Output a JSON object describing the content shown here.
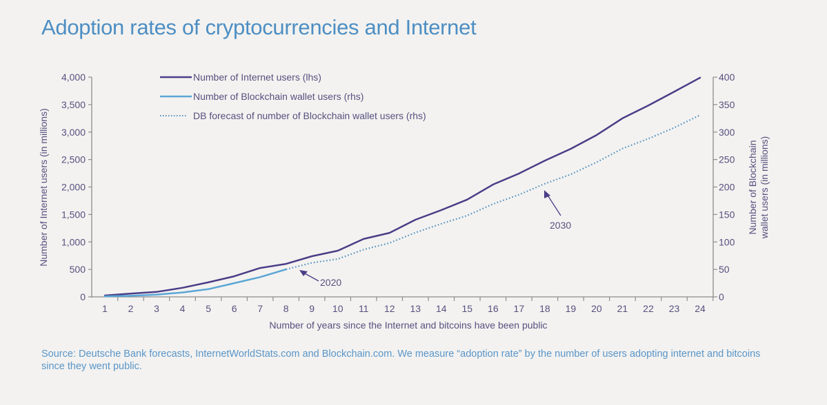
{
  "title": "Adoption rates of cryptocurrencies and Internet",
  "source": "Source: Deutsche Bank forecasts, InternetWorldStats.com and Blockchain.com. We measure “adoption rate” by the number of users adopting internet and bitcoins since they went public.",
  "colors": {
    "internet": "#4b3d87",
    "blockchain": "#5aa6d6",
    "forecast": "#4f8fc0",
    "axis": "#8c8c8c",
    "text": "#57507f",
    "title": "#4d8ec3"
  },
  "chart_data": {
    "type": "line",
    "title": "Adoption rates of cryptocurrencies and Internet",
    "xlabel": "Number of years since the Internet and bitcoins have been public",
    "ylabel_left": "Number of Internet users (in millions)",
    "ylabel_right": [
      "Number of Blockchain",
      "wallet users (in millions)"
    ],
    "x": [
      1,
      2,
      3,
      4,
      5,
      6,
      7,
      8,
      9,
      10,
      11,
      12,
      13,
      14,
      15,
      16,
      17,
      18,
      19,
      20,
      21,
      22,
      23,
      24
    ],
    "xlim": [
      1,
      24
    ],
    "ylim_left": [
      0,
      4000
    ],
    "ylim_right": [
      0,
      400
    ],
    "yticks_left": [
      "0",
      "500",
      "1,000",
      "1,500",
      "2,000",
      "2,500",
      "3,000",
      "3,500",
      "4,000"
    ],
    "yticks_right": [
      "0",
      "50",
      "100",
      "150",
      "200",
      "250",
      "300",
      "350",
      "400"
    ],
    "yticks_left_values": [
      0,
      500,
      1000,
      1500,
      2000,
      2500,
      3000,
      3500,
      4000
    ],
    "yticks_right_values": [
      0,
      50,
      100,
      150,
      200,
      250,
      300,
      350,
      400
    ],
    "legend_position": "top-left",
    "grid": false,
    "series": [
      {
        "name": "Number of Internet users (lhs)",
        "axis": "left",
        "style": "solid",
        "x": [
          1,
          2,
          3,
          4,
          5,
          6,
          7,
          8,
          9,
          10,
          11,
          12,
          13,
          14,
          15,
          16,
          17,
          18,
          19,
          20,
          21,
          22,
          23,
          24
        ],
        "values": [
          25,
          60,
          90,
          165,
          265,
          375,
          525,
          600,
          740,
          840,
          1055,
          1165,
          1405,
          1580,
          1770,
          2045,
          2245,
          2480,
          2695,
          2945,
          3250,
          3485,
          3735,
          3990
        ]
      },
      {
        "name": "Number of Blockchain wallet users (rhs)",
        "axis": "right",
        "style": "solid",
        "x": [
          1,
          2,
          3,
          4,
          5,
          6,
          7,
          8
        ],
        "values": [
          1,
          2,
          4,
          8,
          14,
          25,
          36,
          50
        ]
      },
      {
        "name": "DB forecast of number of Blockchain wallet users (rhs)",
        "axis": "right",
        "style": "dotted",
        "x": [
          8,
          9,
          10,
          11,
          12,
          13,
          14,
          15,
          16,
          17,
          18,
          19,
          20,
          21,
          22,
          23,
          24
        ],
        "values": [
          50,
          62,
          69,
          86,
          98,
          117,
          133,
          148,
          169,
          186,
          206,
          223,
          245,
          270,
          288,
          308,
          331
        ]
      }
    ],
    "annotations": [
      {
        "text": "2020",
        "x": 8,
        "series": "rhs"
      },
      {
        "text": "2030",
        "x": 18,
        "series": "rhs"
      }
    ]
  }
}
